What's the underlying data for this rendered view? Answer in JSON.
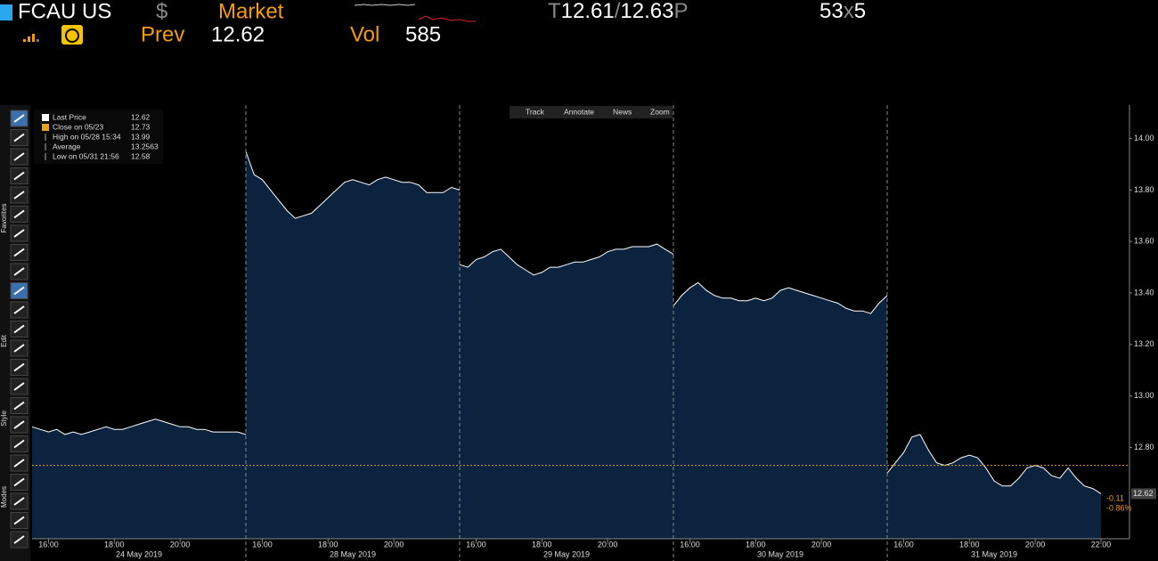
{
  "header": {
    "ticker": "FCAU US",
    "currency": "$",
    "source": "Market",
    "quote": {
      "bid_flag": "T",
      "bid": "12.61",
      "sep": "/",
      "ask": "12.63",
      "ask_flag": "P"
    },
    "size": {
      "bid": "53",
      "sep": "x",
      "ask": "5"
    },
    "prev_label": "Prev",
    "prev": "12.62",
    "vol_label": "Vol",
    "vol": "585"
  },
  "toolbar": {
    "buttons": [
      "Track",
      "Annotate",
      "News",
      "Zoom"
    ],
    "side_groups": [
      "Favorites",
      "Edit",
      "Style",
      "Modes"
    ]
  },
  "chart_data": {
    "type": "area",
    "line_color": "#ffffff",
    "area_color": "#0c2340",
    "close_color": "#e8a317",
    "legend": [
      {
        "label": "Last Price",
        "value": 12.62
      },
      {
        "label": "Close on 05/23",
        "value": 12.73
      },
      {
        "label": "High on 05/28 15:34",
        "value": 13.99
      },
      {
        "label": "Average",
        "value": 13.2563
      },
      {
        "label": "Low on 05/31 21:56",
        "value": 12.58
      }
    ],
    "ylim": [
      12.445,
      14.13
    ],
    "yticks": [
      {
        "value": 12.8,
        "label": "12.80"
      },
      {
        "value": 13,
        "label": "13.00"
      },
      {
        "value": 13.2,
        "label": "13.20"
      },
      {
        "value": 13.4,
        "label": "13.40"
      },
      {
        "value": 13.6,
        "label": "13.60"
      },
      {
        "value": 13.8,
        "label": "13.80"
      },
      {
        "value": 14,
        "label": "14.00"
      }
    ],
    "last_label": "12.62",
    "change": "-0.11",
    "change_pct": "-0.86%",
    "sessions": [
      {
        "date": "24 May 2019",
        "xticks": [
          "16:00",
          "18:00",
          "20:00"
        ],
        "values": [
          12.88,
          12.87,
          12.86,
          12.87,
          12.85,
          12.86,
          12.85,
          12.86,
          12.87,
          12.88,
          12.87,
          12.87,
          12.88,
          12.89,
          12.9,
          12.91,
          12.9,
          12.89,
          12.88,
          12.88,
          12.87,
          12.87,
          12.86,
          12.86,
          12.86,
          12.86,
          12.85
        ]
      },
      {
        "date": "28 May 2019",
        "xticks": [
          "16:00",
          "18:00",
          "20:00"
        ],
        "values": [
          13.95,
          13.86,
          13.84,
          13.8,
          13.76,
          13.72,
          13.69,
          13.7,
          13.71,
          13.74,
          13.77,
          13.8,
          13.83,
          13.84,
          13.83,
          13.82,
          13.84,
          13.85,
          13.84,
          13.83,
          13.83,
          13.82,
          13.79,
          13.79,
          13.79,
          13.81,
          13.8
        ]
      },
      {
        "date": "29 May 2019",
        "xticks": [
          "16:00",
          "18:00",
          "20:00"
        ],
        "values": [
          13.51,
          13.5,
          13.53,
          13.54,
          13.56,
          13.57,
          13.54,
          13.51,
          13.49,
          13.47,
          13.48,
          13.5,
          13.5,
          13.51,
          13.52,
          13.52,
          13.53,
          13.54,
          13.56,
          13.57,
          13.57,
          13.58,
          13.58,
          13.58,
          13.59,
          13.57,
          13.55
        ]
      },
      {
        "date": "30 May 2019",
        "xticks": [
          "16:00",
          "18:00",
          "20:00"
        ],
        "values": [
          13.35,
          13.39,
          13.42,
          13.44,
          13.41,
          13.39,
          13.38,
          13.38,
          13.37,
          13.37,
          13.38,
          13.37,
          13.38,
          13.41,
          13.42,
          13.41,
          13.4,
          13.39,
          13.38,
          13.37,
          13.36,
          13.34,
          13.33,
          13.33,
          13.32,
          13.36,
          13.39
        ]
      },
      {
        "date": "31 May 2019",
        "xticks": [
          "16:00",
          "18:00",
          "20:00",
          "22:00"
        ],
        "values": [
          12.7,
          12.74,
          12.78,
          12.84,
          12.85,
          12.79,
          12.74,
          12.73,
          12.74,
          12.76,
          12.77,
          12.76,
          12.72,
          12.67,
          12.65,
          12.65,
          12.68,
          12.72,
          12.73,
          12.72,
          12.69,
          12.68,
          12.72,
          12.68,
          12.65,
          12.64,
          12.62
        ]
      }
    ]
  }
}
